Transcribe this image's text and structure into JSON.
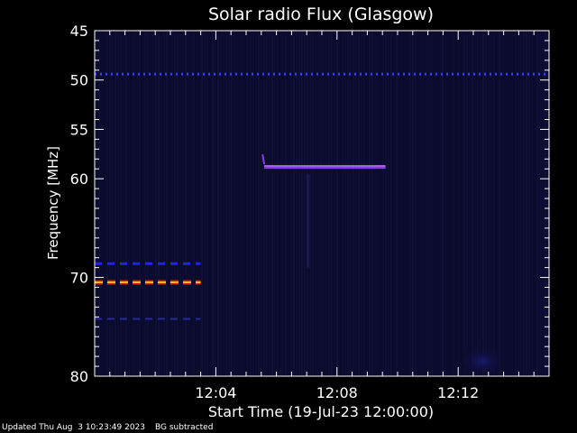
{
  "chart_data": {
    "type": "heatmap",
    "title": "Solar radio Flux (Glasgow)",
    "xlabel": "Start Time (19-Jul-23 12:00:00)",
    "ylabel": "Frequency [MHz]",
    "x_unit": "minutes",
    "xlim": [
      0,
      15
    ],
    "ylim": [
      45,
      80
    ],
    "y_direction": "down",
    "x_ticks": [
      {
        "value": 4,
        "label": "12:04"
      },
      {
        "value": 8,
        "label": "12:08"
      },
      {
        "value": 12,
        "label": "12:12"
      }
    ],
    "y_ticks": [
      {
        "value": 45,
        "label": "45"
      },
      {
        "value": 50,
        "label": "50"
      },
      {
        "value": 55,
        "label": "55"
      },
      {
        "value": 60,
        "label": "60"
      },
      {
        "value": 70,
        "label": "70"
      },
      {
        "value": 80,
        "label": "80"
      }
    ],
    "background_color": "#0a0a2a",
    "features": [
      {
        "name": "interference band",
        "freq": 49.4,
        "t_start": 0,
        "t_end": 15,
        "color": "#3a3aff",
        "style": "dashed-fine"
      },
      {
        "name": "emission band",
        "freq": 58.8,
        "t_start": 5.6,
        "t_end": 9.6,
        "color": "#8a3adf",
        "style": "solid"
      },
      {
        "name": "interference band",
        "freq": 68.6,
        "t_start": 0,
        "t_end": 3.5,
        "color": "#2020ff",
        "style": "dashed"
      },
      {
        "name": "interference band",
        "freq": 70.5,
        "t_start": 0,
        "t_end": 3.5,
        "color": "#ff5a10",
        "style": "dashed-hot"
      },
      {
        "name": "interference band",
        "freq": 74.2,
        "t_start": 0,
        "t_end": 3.5,
        "color": "#2a2a9a",
        "style": "dashed-faint"
      }
    ]
  },
  "footer": {
    "updated": "Updated Thu Aug  3 10:23:49 2023",
    "note": "BG subtracted"
  }
}
